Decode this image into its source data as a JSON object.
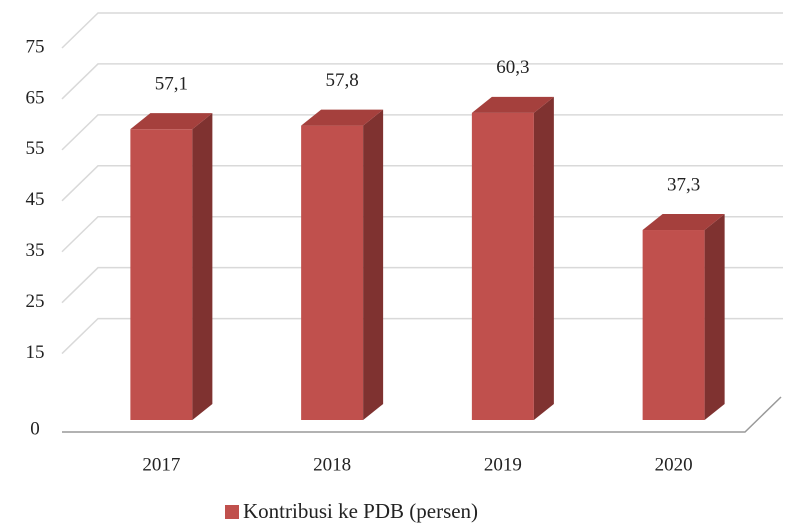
{
  "chart_data": {
    "type": "bar3d",
    "categories": [
      "2017",
      "2018",
      "2019",
      "2020"
    ],
    "series": [
      {
        "name": "Kontribusi ke PDB (persen)",
        "color": "#c0504d",
        "values": [
          57.1,
          57.8,
          60.3,
          37.3
        ],
        "value_labels": [
          "57,1",
          "57,8",
          "60,3",
          "37,3"
        ]
      }
    ],
    "ylim": [
      0,
      75
    ],
    "yticks": [
      0,
      15,
      25,
      35,
      45,
      55,
      65,
      75
    ],
    "grid": true,
    "legend": "bottom"
  }
}
